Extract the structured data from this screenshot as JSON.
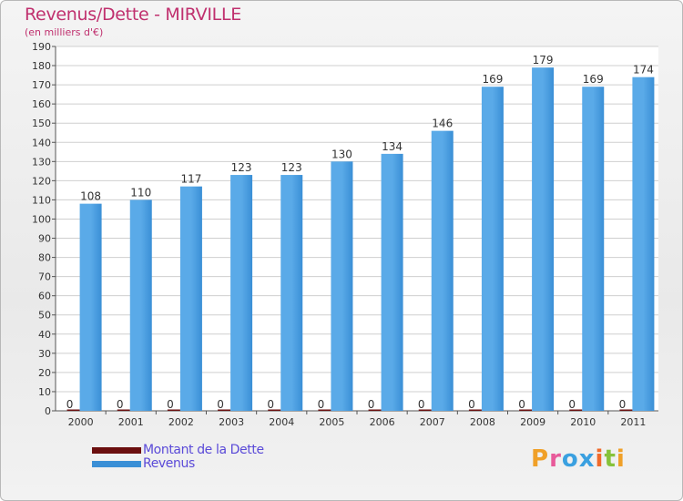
{
  "title": "Revenus/Dette - MIRVILLE",
  "subtitle": "(en milliers d'€)",
  "legend": {
    "debt_label": "Montant de la Dette",
    "revenue_label": "Revenus"
  },
  "logo": {
    "text": "Proxiti"
  },
  "colors": {
    "title": "#c0306e",
    "debt": "#6b0f0f",
    "revenue": "#3a8fd6",
    "revenue_light": "#5aaae8",
    "legend_text": "#5a4ad8",
    "grid": "#cfcfcf"
  },
  "chart_data": {
    "type": "bar",
    "title": "Revenus/Dette - MIRVILLE",
    "subtitle": "(en milliers d'€)",
    "categories": [
      "2000",
      "2001",
      "2002",
      "2003",
      "2004",
      "2005",
      "2006",
      "2007",
      "2008",
      "2009",
      "2010",
      "2011"
    ],
    "series": [
      {
        "name": "Montant de la Dette",
        "values": [
          0,
          0,
          0,
          0,
          0,
          0,
          0,
          0,
          0,
          0,
          0,
          0
        ]
      },
      {
        "name": "Revenus",
        "values": [
          108,
          110,
          117,
          123,
          123,
          130,
          134,
          146,
          169,
          179,
          169,
          174
        ]
      }
    ],
    "ylim": [
      0,
      190
    ],
    "yticks": [
      0,
      10,
      20,
      30,
      40,
      50,
      60,
      70,
      80,
      90,
      100,
      110,
      120,
      130,
      140,
      150,
      160,
      170,
      180,
      190
    ],
    "grid": true,
    "legend_position": "bottom-left"
  }
}
